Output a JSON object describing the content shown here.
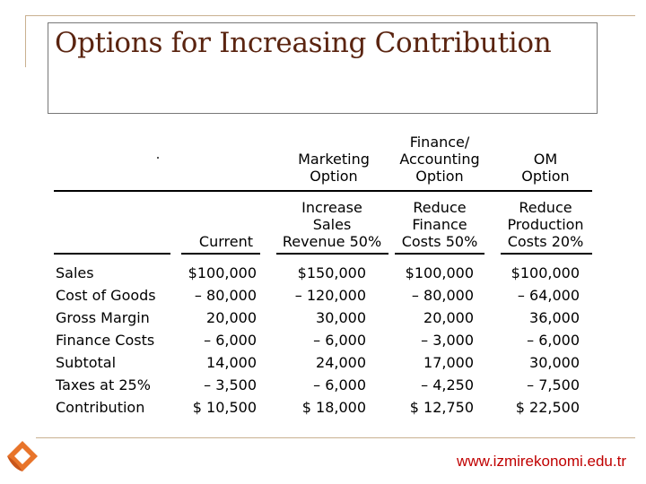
{
  "title": "Options for Increasing Contribution",
  "header": {
    "option_labels": [
      "Marketing\nOption",
      "Finance/\nAccounting\nOption",
      "OM\nOption"
    ],
    "current_label": "Current",
    "sub_labels": [
      "Increase\nSales\nRevenue 50%",
      "Reduce\nFinance\nCosts 50%",
      "Reduce\nProduction\nCosts 20%"
    ]
  },
  "row_labels": [
    "Sales",
    "Cost of Goods",
    "Gross Margin",
    "Finance Costs",
    "Subtotal",
    "Taxes at 25%",
    "Contribution"
  ],
  "columns": [
    [
      "$100,000",
      "– 80,000",
      "20,000",
      "– 6,000",
      "14,000",
      "– 3,500",
      "$ 10,500"
    ],
    [
      "$150,000",
      "– 120,000",
      "30,000",
      "– 6,000",
      "24,000",
      "– 6,000",
      "$ 18,000"
    ],
    [
      "$100,000",
      "– 80,000",
      "20,000",
      "– 3,000",
      "17,000",
      "– 4,250",
      "$ 12,750"
    ],
    [
      "$100,000",
      "– 64,000",
      "36,000",
      "– 6,000",
      "30,000",
      "– 7,500",
      "$ 22,500"
    ]
  ],
  "footer": "www.izmirekonomi.edu.tr",
  "colors": {
    "title": "#5a2410",
    "footer": "#c00000",
    "logo": "#e8742a"
  }
}
